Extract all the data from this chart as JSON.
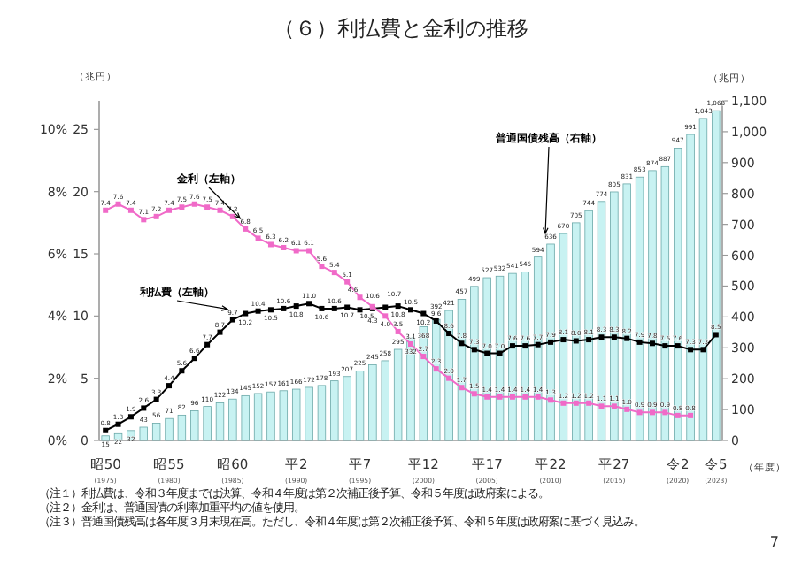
{
  "chart_data": {
    "type": "bar",
    "title": "（６）利払費と金利の推移",
    "categories": [
      "昭50\n(1975)",
      null,
      null,
      null,
      null,
      "昭55\n(1980)",
      null,
      null,
      null,
      null,
      "昭60\n(1985)",
      null,
      null,
      null,
      null,
      "平2\n(1990)",
      null,
      null,
      null,
      null,
      "平7\n(1995)",
      null,
      null,
      null,
      null,
      "平12\n(2000)",
      null,
      null,
      null,
      null,
      "平17\n(2005)",
      null,
      null,
      null,
      null,
      "平22\n(2010)",
      null,
      null,
      null,
      null,
      "平27\n(2015)",
      null,
      null,
      null,
      null,
      "令2\n(2020)",
      null,
      null,
      "令5\n(2023)"
    ],
    "series": [
      {
        "name": "普通国債残高（右軸）",
        "axis": "y2",
        "color": "#c8f2f2",
        "values": [
          15,
          22,
          32,
          43,
          56,
          71,
          82,
          96,
          110,
          122,
          134,
          145,
          152,
          157,
          161,
          166,
          172,
          178,
          193,
          207,
          225,
          245,
          258,
          295,
          332,
          368,
          392,
          421,
          457,
          499,
          527,
          532,
          541,
          546,
          594,
          636,
          670,
          705,
          744,
          774,
          805,
          831,
          853,
          874,
          887,
          947,
          991,
          1043,
          1068
        ],
        "value_labels": [
          "15",
          "22",
          "32",
          "43",
          "56",
          "71",
          "82",
          "96",
          "110",
          "122",
          "134",
          "145",
          "152",
          "157",
          "161",
          "166",
          "172",
          "178",
          "193",
          "207",
          "225",
          "245",
          "258",
          "295",
          "332",
          "368",
          "392",
          "421",
          "457",
          "499",
          "527",
          "532",
          "541",
          "546",
          "594",
          "636",
          "670",
          "705",
          "744",
          "774",
          "805",
          "831",
          "853",
          "874",
          "887",
          "947",
          "991",
          "1,043",
          "1,068"
        ]
      },
      {
        "name": "利払費（左軸）",
        "type": "line",
        "color": "#000000",
        "values": [
          0.8,
          1.3,
          1.9,
          2.6,
          3.3,
          4.4,
          5.6,
          6.6,
          7.7,
          8.7,
          9.7,
          10.2,
          10.4,
          10.5,
          10.6,
          10.8,
          11.0,
          10.6,
          10.6,
          10.7,
          10.5,
          10.6,
          10.7,
          10.8,
          10.5,
          10.2,
          9.6,
          8.6,
          7.8,
          7.3,
          7.0,
          7.0,
          7.6,
          7.6,
          7.7,
          7.9,
          8.1,
          8.0,
          8.1,
          8.3,
          8.3,
          8.2,
          7.9,
          7.8,
          7.6,
          7.6,
          7.3,
          7.3,
          8.5
        ],
        "value_labels": [
          "0.8",
          "1.3",
          "1.9",
          "2.6",
          "3.3",
          "4.4",
          "5.6",
          "6.6",
          "7.7",
          "8.7",
          "9.7",
          "10.2",
          "10.4",
          "10.5",
          "10.6",
          "10.8",
          "11.0",
          "10.6",
          "10.6",
          "10.7",
          "10.5",
          "10.6",
          "10.7",
          "10.8",
          "10.5",
          "10.2",
          "9.6",
          "8.6",
          "7.8",
          "7.3",
          "7.0",
          "7.0",
          "7.6",
          "7.6",
          "7.7",
          "7.9",
          "8.1",
          "8.0",
          "8.1",
          "8.3",
          "8.3",
          "8.2",
          "7.9",
          "7.8",
          "7.6",
          "7.6",
          "7.3",
          "7.3",
          "8.5"
        ]
      },
      {
        "name": "金利（左軸）",
        "type": "line",
        "axis": "y3",
        "color": "#f06ac8",
        "values": [
          7.4,
          7.6,
          7.4,
          7.1,
          7.2,
          7.4,
          7.5,
          7.6,
          7.5,
          7.4,
          7.2,
          6.8,
          6.5,
          6.3,
          6.2,
          6.1,
          6.1,
          5.6,
          5.4,
          5.1,
          4.6,
          4.3,
          4.0,
          3.5,
          3.1,
          2.7,
          2.3,
          2.0,
          1.7,
          1.5,
          1.4,
          1.4,
          1.4,
          1.4,
          1.4,
          1.3,
          1.2,
          1.2,
          1.2,
          1.1,
          1.1,
          1.0,
          0.9,
          0.9,
          0.9,
          0.8,
          0.8,
          null,
          null
        ],
        "value_labels": [
          "7.4",
          "7.6",
          "7.4",
          "7.1",
          "7.2",
          "7.4",
          "7.5",
          "7.6",
          "7.5",
          "7.4",
          "7.2",
          "6.8",
          "6.5",
          "6.3",
          "6.2",
          "6.1",
          "6.1",
          "5.6",
          "5.4",
          "5.1",
          "4.6",
          "4.3",
          "4.0",
          "3.5",
          "3.1",
          "2.7",
          "2.3",
          "2.0",
          "1.7",
          "1.5",
          "1.4",
          "1.4",
          "1.4",
          "1.4",
          "1.4",
          "1.3",
          "1.2",
          "1.2",
          "1.2",
          "1.1",
          "1.1",
          "1.0",
          "0.9",
          "0.9",
          "0.9",
          "0.8",
          "0.8",
          null,
          null
        ]
      }
    ],
    "ylabel": "（兆円）",
    "y2label": "（兆円）",
    "xlabel": "（年度）",
    "ylim": [
      0,
      27.3
    ],
    "yticks": [
      0,
      5,
      10,
      15,
      20,
      25
    ],
    "y3lim": [
      0,
      10.92
    ],
    "y3ticks": [
      {
        "value": 0,
        "label": "0%"
      },
      {
        "value": 2,
        "label": "2%"
      },
      {
        "value": 4,
        "label": "4%"
      },
      {
        "value": 6,
        "label": "6%"
      },
      {
        "value": 8,
        "label": "8%"
      },
      {
        "value": 10,
        "label": "10%"
      }
    ],
    "y2lim": [
      0,
      1100
    ],
    "y2ticks": [
      0,
      100,
      200,
      300,
      400,
      500,
      600,
      700,
      800,
      900,
      {
        "value": 1000,
        "label": "1,000"
      },
      {
        "value": 1100,
        "label": "1,100"
      }
    ],
    "marker": "square",
    "legend": false,
    "grid": false,
    "annotations": [
      "（注１）利払費は、令和３年度までは決算、令和４年度は第２次補正後予算、令和５年度は政府案による。",
      "（注２）金利は、普通国債の利率加重平均の値を使用。",
      "（注３）普通国債残高は各年度３月末現在高。ただし、令和４年度は第２次補正後予算、令和５年度は政府案に基づく見込み。",
      "7"
    ]
  }
}
